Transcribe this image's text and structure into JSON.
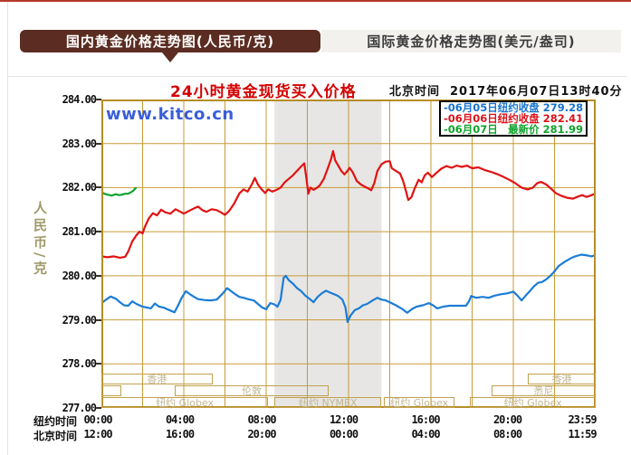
{
  "header": {
    "tabs": [
      {
        "label": "国内黄金价格走势图(人民币/克)",
        "active": true
      },
      {
        "label": "国际黄金价格走势图(美元/盎司)",
        "active": false
      }
    ]
  },
  "watermark": "www.kitco.cn",
  "chart_header": {
    "title": "24小时黄金现货买入价格",
    "timezone_label": "北京时间",
    "datetime": "2017年06月07日13时40分"
  },
  "legend": {
    "entries": [
      {
        "date": "-06月05日",
        "label": "纽约收盘",
        "value": "279.28",
        "color": "#1673ce"
      },
      {
        "date": "-06月06日",
        "label": "纽约收盘",
        "value": "282.41",
        "color": "#dc1118"
      },
      {
        "date": "-06月07日",
        "label": "最新价",
        "value": "281.99",
        "color": "#0fa32b"
      }
    ]
  },
  "axes": {
    "y_unit": "人民币/克",
    "y_ticks": [
      "284.00",
      "283.00",
      "282.00",
      "281.00",
      "280.00",
      "279.00",
      "278.00",
      "277.00"
    ],
    "x_rows": [
      {
        "label": "纽约时间",
        "ticks": [
          "00:00",
          "04:00",
          "08:00",
          "12:00",
          "16:00",
          "20:00",
          "23:59"
        ]
      },
      {
        "label": "北京时间",
        "ticks": [
          "12:00",
          "16:00",
          "20:00",
          "00:00",
          "04:00",
          "08:00",
          "11:59"
        ]
      }
    ]
  },
  "sessions": [
    {
      "row": 0,
      "start": 0,
      "end": 5.4,
      "label": "香港"
    },
    {
      "row": 0,
      "start": 20.7,
      "end": 24,
      "label": "香港"
    },
    {
      "row": 1,
      "start": 0,
      "end": 0.95,
      "label": ""
    },
    {
      "row": 1,
      "start": 3.55,
      "end": 11.05,
      "label": "伦敦"
    },
    {
      "row": 1,
      "start": 18.95,
      "end": 24,
      "label": "悉尼"
    },
    {
      "row": 2,
      "start": 0,
      "end": 8.1,
      "label": "纽约 Globex"
    },
    {
      "row": 2,
      "start": 8.4,
      "end": 13.6,
      "label": "纽约 NYMEX"
    },
    {
      "row": 2,
      "start": 13.72,
      "end": 17.15,
      "label": "纽约 Globex"
    },
    {
      "row": 2,
      "start": 17.9,
      "end": 24,
      "label": "纽约 Globex"
    }
  ],
  "colors": {
    "grid": "#c89b37",
    "axis_border": "#b68d28",
    "band": "#e7e6e4",
    "session_border": "#c2a14e",
    "tab_active_bg": "#5b2c21",
    "title_red": "#d40000",
    "watermark_blue": "#3a5ed8",
    "top_accent": "#b5382a"
  },
  "chart_data": {
    "type": "line",
    "title": "24小时黄金现货买入价格",
    "ylabel": "人民币/克",
    "ylim": [
      277,
      284
    ],
    "xlim_hours": [
      0,
      24
    ],
    "x_unit": "纽约时间 hours",
    "grid": true,
    "legend_position": "top-right",
    "shaded_band_hours": [
      8.4,
      13.6
    ],
    "series": [
      {
        "name": "06月05日 纽约收盘 279.28",
        "color": "#1b7cd6",
        "points": [
          [
            0,
            279.38
          ],
          [
            0.2,
            279.45
          ],
          [
            0.45,
            279.53
          ],
          [
            0.7,
            279.48
          ],
          [
            0.9,
            279.4
          ],
          [
            1.1,
            279.33
          ],
          [
            1.3,
            279.32
          ],
          [
            1.5,
            279.42
          ],
          [
            1.7,
            279.36
          ],
          [
            2.0,
            279.3
          ],
          [
            2.2,
            279.28
          ],
          [
            2.4,
            279.26
          ],
          [
            2.6,
            279.37
          ],
          [
            2.8,
            279.3
          ],
          [
            3.0,
            279.28
          ],
          [
            3.2,
            279.24
          ],
          [
            3.4,
            279.2
          ],
          [
            3.55,
            279.17
          ],
          [
            3.75,
            279.35
          ],
          [
            3.9,
            279.5
          ],
          [
            4.1,
            279.65
          ],
          [
            4.3,
            279.58
          ],
          [
            4.5,
            279.52
          ],
          [
            4.7,
            279.47
          ],
          [
            5.0,
            279.45
          ],
          [
            5.3,
            279.44
          ],
          [
            5.6,
            279.46
          ],
          [
            5.9,
            279.6
          ],
          [
            6.1,
            279.72
          ],
          [
            6.3,
            279.65
          ],
          [
            6.5,
            279.58
          ],
          [
            6.7,
            279.52
          ],
          [
            6.9,
            279.5
          ],
          [
            7.2,
            279.46
          ],
          [
            7.4,
            279.44
          ],
          [
            7.6,
            279.36
          ],
          [
            7.8,
            279.28
          ],
          [
            8.0,
            279.24
          ],
          [
            8.2,
            279.38
          ],
          [
            8.4,
            279.35
          ],
          [
            8.55,
            279.3
          ],
          [
            8.7,
            279.45
          ],
          [
            8.85,
            279.95
          ],
          [
            8.95,
            280.0
          ],
          [
            9.1,
            279.9
          ],
          [
            9.3,
            279.82
          ],
          [
            9.5,
            279.72
          ],
          [
            9.7,
            279.65
          ],
          [
            9.9,
            279.55
          ],
          [
            10.1,
            279.48
          ],
          [
            10.3,
            279.4
          ],
          [
            10.5,
            279.52
          ],
          [
            10.7,
            279.6
          ],
          [
            10.9,
            279.66
          ],
          [
            11.1,
            279.62
          ],
          [
            11.3,
            279.58
          ],
          [
            11.5,
            279.54
          ],
          [
            11.7,
            279.46
          ],
          [
            11.85,
            279.28
          ],
          [
            11.95,
            278.95
          ],
          [
            12.1,
            279.1
          ],
          [
            12.3,
            279.22
          ],
          [
            12.5,
            279.26
          ],
          [
            12.7,
            279.33
          ],
          [
            12.9,
            279.36
          ],
          [
            13.2,
            279.45
          ],
          [
            13.4,
            279.5
          ],
          [
            13.6,
            279.46
          ],
          [
            13.8,
            279.44
          ],
          [
            14.0,
            279.4
          ],
          [
            14.3,
            279.33
          ],
          [
            14.6,
            279.25
          ],
          [
            14.85,
            279.16
          ],
          [
            15.1,
            279.25
          ],
          [
            15.3,
            279.3
          ],
          [
            15.6,
            279.33
          ],
          [
            15.9,
            279.38
          ],
          [
            16.1,
            279.33
          ],
          [
            16.3,
            279.26
          ],
          [
            16.6,
            279.3
          ],
          [
            16.9,
            279.32
          ],
          [
            17.3,
            279.32
          ],
          [
            17.7,
            279.32
          ],
          [
            17.85,
            279.42
          ],
          [
            17.95,
            279.54
          ],
          [
            18.2,
            279.5
          ],
          [
            18.5,
            279.52
          ],
          [
            18.8,
            279.5
          ],
          [
            19.1,
            279.55
          ],
          [
            19.4,
            279.58
          ],
          [
            19.7,
            279.6
          ],
          [
            20.0,
            279.64
          ],
          [
            20.2,
            279.55
          ],
          [
            20.4,
            279.44
          ],
          [
            20.6,
            279.55
          ],
          [
            20.8,
            279.65
          ],
          [
            21.0,
            279.76
          ],
          [
            21.2,
            279.84
          ],
          [
            21.4,
            279.86
          ],
          [
            21.6,
            279.92
          ],
          [
            21.8,
            280.0
          ],
          [
            22.0,
            280.1
          ],
          [
            22.2,
            280.22
          ],
          [
            22.5,
            280.32
          ],
          [
            22.8,
            280.4
          ],
          [
            23.0,
            280.44
          ],
          [
            23.3,
            280.48
          ],
          [
            23.6,
            280.46
          ],
          [
            23.8,
            280.44
          ],
          [
            24,
            280.47
          ]
        ]
      },
      {
        "name": "06月06日 纽约收盘 282.41",
        "color": "#e11212",
        "points": [
          [
            0,
            280.44
          ],
          [
            0.3,
            280.42
          ],
          [
            0.6,
            280.44
          ],
          [
            0.9,
            280.41
          ],
          [
            1.15,
            280.43
          ],
          [
            1.3,
            280.55
          ],
          [
            1.5,
            280.78
          ],
          [
            1.7,
            280.92
          ],
          [
            1.85,
            281.0
          ],
          [
            2.0,
            280.96
          ],
          [
            2.1,
            281.1
          ],
          [
            2.3,
            281.3
          ],
          [
            2.5,
            281.42
          ],
          [
            2.7,
            281.37
          ],
          [
            2.9,
            281.5
          ],
          [
            3.1,
            281.44
          ],
          [
            3.35,
            281.41
          ],
          [
            3.6,
            281.51
          ],
          [
            3.8,
            281.46
          ],
          [
            4.0,
            281.41
          ],
          [
            4.25,
            281.47
          ],
          [
            4.5,
            281.53
          ],
          [
            4.7,
            281.57
          ],
          [
            4.9,
            281.49
          ],
          [
            5.1,
            281.45
          ],
          [
            5.35,
            281.51
          ],
          [
            5.6,
            281.49
          ],
          [
            5.8,
            281.44
          ],
          [
            6.0,
            281.38
          ],
          [
            6.2,
            281.47
          ],
          [
            6.45,
            281.64
          ],
          [
            6.7,
            281.87
          ],
          [
            6.9,
            281.96
          ],
          [
            7.1,
            281.91
          ],
          [
            7.3,
            282.07
          ],
          [
            7.45,
            282.22
          ],
          [
            7.6,
            282.07
          ],
          [
            7.8,
            281.95
          ],
          [
            7.95,
            281.88
          ],
          [
            8.1,
            281.96
          ],
          [
            8.3,
            281.91
          ],
          [
            8.5,
            281.95
          ],
          [
            8.7,
            282.0
          ],
          [
            8.9,
            282.12
          ],
          [
            9.1,
            282.2
          ],
          [
            9.3,
            282.28
          ],
          [
            9.5,
            282.38
          ],
          [
            9.7,
            282.48
          ],
          [
            9.85,
            282.55
          ],
          [
            9.95,
            282.22
          ],
          [
            10.05,
            281.86
          ],
          [
            10.15,
            282.0
          ],
          [
            10.3,
            281.95
          ],
          [
            10.45,
            281.99
          ],
          [
            10.6,
            282.05
          ],
          [
            10.8,
            282.2
          ],
          [
            11.0,
            282.45
          ],
          [
            11.15,
            282.65
          ],
          [
            11.25,
            282.83
          ],
          [
            11.35,
            282.62
          ],
          [
            11.5,
            282.5
          ],
          [
            11.65,
            282.38
          ],
          [
            11.8,
            282.3
          ],
          [
            11.95,
            282.38
          ],
          [
            12.05,
            282.45
          ],
          [
            12.2,
            282.35
          ],
          [
            12.4,
            282.15
          ],
          [
            12.6,
            282.07
          ],
          [
            12.8,
            282.02
          ],
          [
            13.0,
            281.97
          ],
          [
            13.1,
            281.94
          ],
          [
            13.25,
            282.1
          ],
          [
            13.4,
            282.38
          ],
          [
            13.6,
            282.53
          ],
          [
            13.8,
            282.59
          ],
          [
            14.0,
            282.6
          ],
          [
            14.1,
            282.44
          ],
          [
            14.3,
            282.38
          ],
          [
            14.5,
            282.32
          ],
          [
            14.65,
            282.15
          ],
          [
            14.8,
            281.9
          ],
          [
            14.9,
            281.72
          ],
          [
            15.05,
            281.78
          ],
          [
            15.2,
            281.97
          ],
          [
            15.4,
            282.18
          ],
          [
            15.55,
            282.12
          ],
          [
            15.7,
            282.28
          ],
          [
            15.85,
            282.34
          ],
          [
            16.05,
            282.24
          ],
          [
            16.25,
            282.33
          ],
          [
            16.5,
            282.43
          ],
          [
            16.75,
            282.49
          ],
          [
            17.0,
            282.45
          ],
          [
            17.25,
            282.5
          ],
          [
            17.5,
            282.47
          ],
          [
            17.75,
            282.5
          ],
          [
            18.0,
            282.44
          ],
          [
            18.3,
            282.46
          ],
          [
            18.6,
            282.4
          ],
          [
            18.9,
            282.36
          ],
          [
            19.2,
            282.31
          ],
          [
            19.5,
            282.25
          ],
          [
            19.8,
            282.18
          ],
          [
            20.1,
            282.1
          ],
          [
            20.4,
            282.0
          ],
          [
            20.7,
            281.96
          ],
          [
            20.95,
            282.0
          ],
          [
            21.15,
            282.1
          ],
          [
            21.35,
            282.13
          ],
          [
            21.6,
            282.07
          ],
          [
            21.85,
            281.97
          ],
          [
            22.05,
            281.88
          ],
          [
            22.3,
            281.82
          ],
          [
            22.6,
            281.77
          ],
          [
            22.9,
            281.75
          ],
          [
            23.1,
            281.79
          ],
          [
            23.35,
            281.83
          ],
          [
            23.55,
            281.79
          ],
          [
            23.75,
            281.82
          ],
          [
            24,
            281.87
          ]
        ]
      },
      {
        "name": "06月07日 最新价 281.99",
        "color": "#0ca42e",
        "points": [
          [
            0,
            281.9
          ],
          [
            0.15,
            281.86
          ],
          [
            0.3,
            281.84
          ],
          [
            0.5,
            281.82
          ],
          [
            0.7,
            281.85
          ],
          [
            0.85,
            281.83
          ],
          [
            1.0,
            281.84
          ],
          [
            1.15,
            281.86
          ],
          [
            1.3,
            281.86
          ],
          [
            1.45,
            281.9
          ],
          [
            1.55,
            281.93
          ],
          [
            1.62,
            281.97
          ],
          [
            1.67,
            281.99
          ]
        ]
      }
    ]
  }
}
